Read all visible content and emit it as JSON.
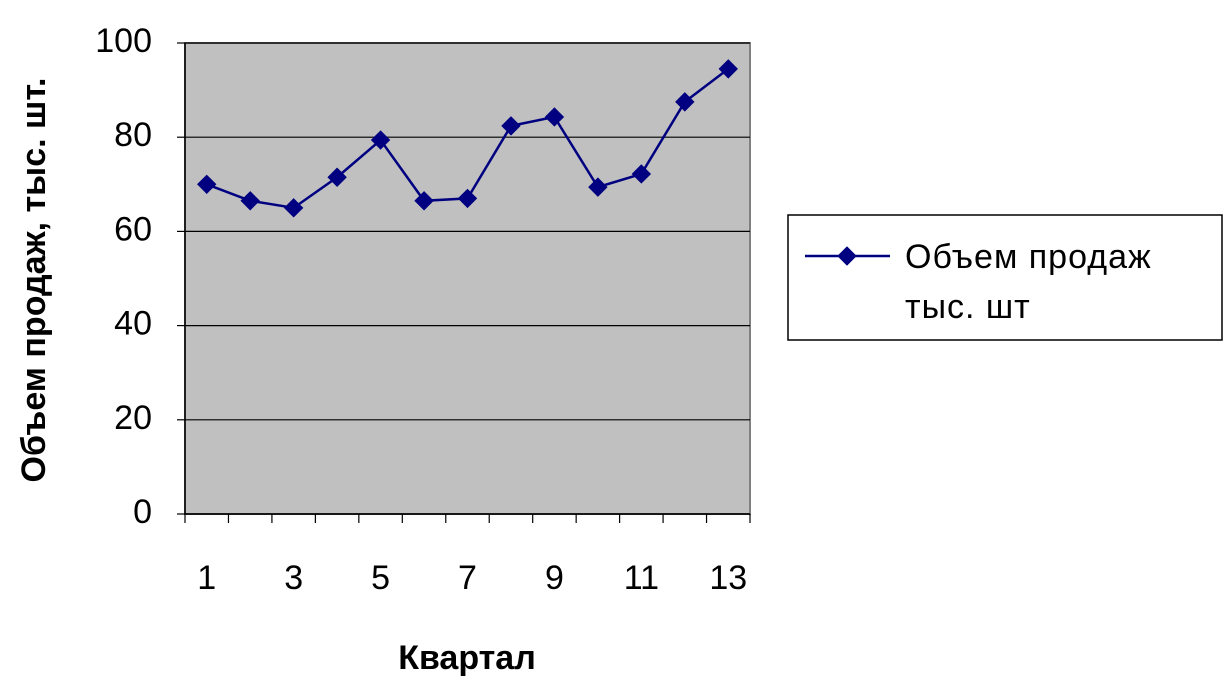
{
  "chart_data": {
    "type": "line",
    "xlabel": "Квартал",
    "ylabel": "Объем продаж, тыс. шт.",
    "categories": [
      1,
      null,
      3,
      null,
      5,
      null,
      7,
      null,
      9,
      null,
      11,
      null,
      13
    ],
    "series": [
      {
        "name": "Объем продаж тыс. шт",
        "color": "#000080",
        "values": [
          70,
          66.5,
          65,
          71.5,
          79.4,
          66.5,
          67,
          82.4,
          84.3,
          69.4,
          72.2,
          87.5,
          94.5
        ]
      }
    ],
    "ylim": [
      0,
      100
    ],
    "yticks": [
      0,
      20,
      40,
      60,
      80,
      100
    ],
    "grid": true,
    "legend": "right"
  }
}
